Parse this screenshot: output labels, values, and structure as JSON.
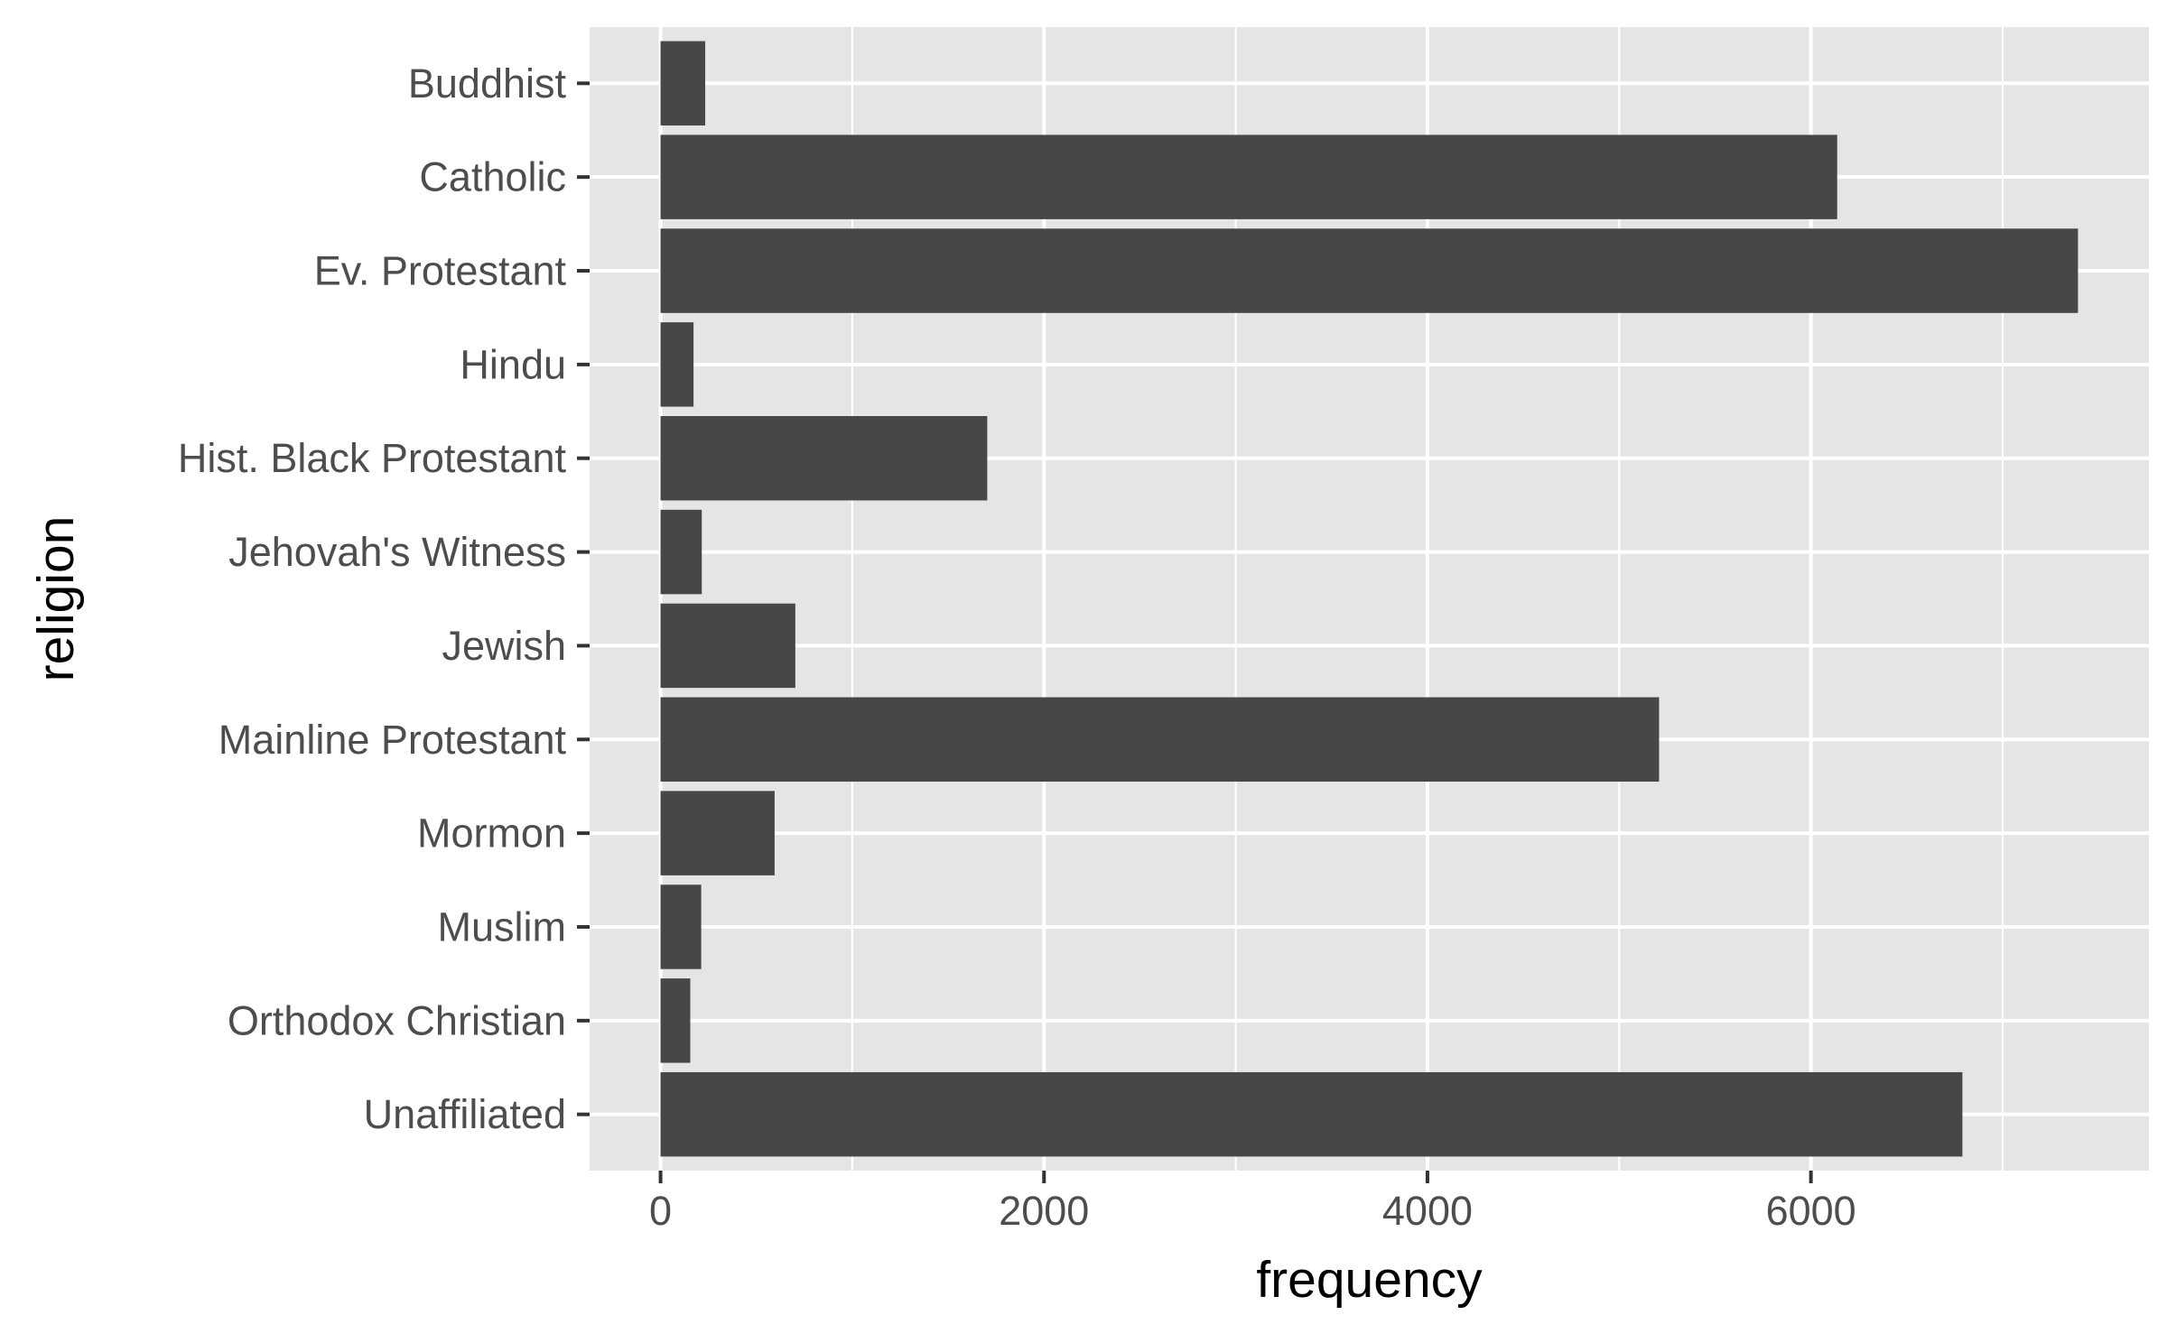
{
  "chart_data": {
    "type": "bar",
    "orientation": "horizontal",
    "categories": [
      "Buddhist",
      "Catholic",
      "Ev. Protestant",
      "Hindu",
      "Hist. Black Protestant",
      "Jehovah's Witness",
      "Jewish",
      "Mainline Protestant",
      "Mormon",
      "Muslim",
      "Orthodox Christian",
      "Unaffiliated"
    ],
    "values": [
      233,
      6137,
      7393,
      172,
      1704,
      215,
      703,
      5208,
      595,
      212,
      155,
      6790
    ],
    "xlabel": "frequency",
    "ylabel": "religion",
    "xlim": [
      -370,
      7763
    ],
    "xticks": [
      0,
      2000,
      4000,
      6000
    ],
    "xtick_labels": [
      "0",
      "2000",
      "4000",
      "6000"
    ],
    "grid": true,
    "colors": {
      "bar": "#474747",
      "panel_background": "#E5E5E5",
      "grid_line": "#FFFFFF",
      "tick_mark": "#333333",
      "tick_label": "#4D4D4D",
      "axis_title": "#000000"
    }
  }
}
